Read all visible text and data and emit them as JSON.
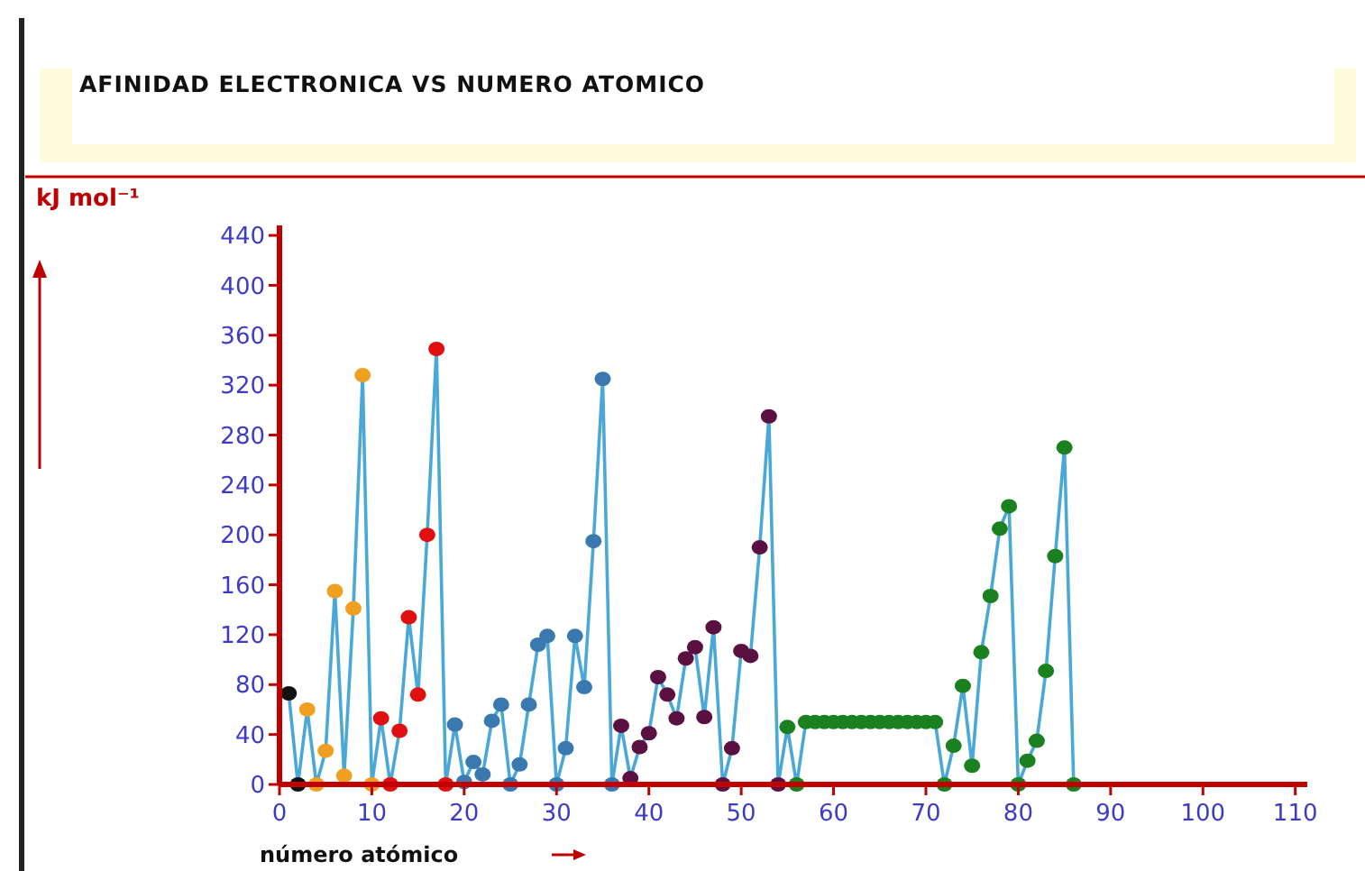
{
  "chart_data": {
    "type": "line",
    "title": "AFINIDAD ELECTRONICA VS NUMERO ATOMICO",
    "xlabel": "número atómico",
    "ylabel": "kJ mol⁻¹",
    "x": [
      1,
      2,
      3,
      4,
      5,
      6,
      7,
      8,
      9,
      10,
      11,
      12,
      13,
      14,
      15,
      16,
      17,
      18,
      19,
      20,
      21,
      22,
      23,
      24,
      25,
      26,
      27,
      28,
      29,
      30,
      31,
      32,
      33,
      34,
      35,
      36,
      37,
      38,
      39,
      40,
      41,
      42,
      43,
      44,
      45,
      46,
      47,
      48,
      49,
      50,
      51,
      52,
      53,
      54,
      55,
      56,
      57,
      58,
      59,
      60,
      61,
      62,
      63,
      64,
      65,
      66,
      67,
      68,
      69,
      70,
      71,
      72,
      73,
      74,
      75,
      76,
      77,
      78,
      79,
      80,
      81,
      82,
      83,
      84,
      85,
      86
    ],
    "series": [
      {
        "color": "#4aa8d8",
        "values": [
          73,
          0,
          60,
          0,
          27,
          155,
          7,
          141,
          328,
          0,
          53,
          0,
          43,
          134,
          72,
          200,
          349,
          0,
          48,
          2,
          18,
          8,
          51,
          64,
          0,
          16,
          64,
          112,
          119,
          0,
          29,
          119,
          78,
          195,
          325,
          0,
          47,
          5,
          30,
          41,
          86,
          72,
          53,
          101,
          110,
          54,
          126,
          0,
          29,
          107,
          103,
          190,
          295,
          0,
          46,
          0,
          50,
          50,
          50,
          50,
          50,
          50,
          50,
          50,
          50,
          50,
          50,
          50,
          50,
          50,
          50,
          0,
          31,
          79,
          15,
          106,
          151,
          205,
          223,
          0,
          19,
          35,
          91,
          183,
          270,
          0
        ],
        "colors": [
          "#111111",
          "#111111",
          "#f0a020",
          "#f0a020",
          "#f0a020",
          "#f0a020",
          "#f0a020",
          "#f0a020",
          "#f0a020",
          "#f0a020",
          "#e01010",
          "#e01010",
          "#e01010",
          "#e01010",
          "#e01010",
          "#e01010",
          "#e01010",
          "#e01010",
          "#3a78b0",
          "#3a78b0",
          "#3a78b0",
          "#3a78b0",
          "#3a78b0",
          "#3a78b0",
          "#3a78b0",
          "#3a78b0",
          "#3a78b0",
          "#3a78b0",
          "#3a78b0",
          "#3a78b0",
          "#3a78b0",
          "#3a78b0",
          "#3a78b0",
          "#3a78b0",
          "#3a78b0",
          "#3a78b0",
          "#5a1040",
          "#5a1040",
          "#5a1040",
          "#5a1040",
          "#5a1040",
          "#5a1040",
          "#5a1040",
          "#5a1040",
          "#5a1040",
          "#5a1040",
          "#5a1040",
          "#5a1040",
          "#5a1040",
          "#5a1040",
          "#5a1040",
          "#5a1040",
          "#5a1040",
          "#5a1040",
          "#1a8020",
          "#1a8020",
          "#1a8020",
          "#1a8020",
          "#1a8020",
          "#1a8020",
          "#1a8020",
          "#1a8020",
          "#1a8020",
          "#1a8020",
          "#1a8020",
          "#1a8020",
          "#1a8020",
          "#1a8020",
          "#1a8020",
          "#1a8020",
          "#1a8020",
          "#1a8020",
          "#1a8020",
          "#1a8020",
          "#1a8020",
          "#1a8020",
          "#1a8020",
          "#1a8020",
          "#1a8020",
          "#1a8020",
          "#1a8020",
          "#1a8020",
          "#1a8020",
          "#1a8020",
          "#1a8020",
          "#1a8020"
        ]
      }
    ],
    "marker": "circle",
    "line_style": "solid",
    "grid": false,
    "xlim": [
      0,
      111.3
    ],
    "xticks": [
      0,
      10,
      20,
      30,
      40,
      50,
      60,
      70,
      80,
      90,
      100,
      110
    ],
    "ylim": [
      0,
      448
    ],
    "yticks": [
      0,
      40,
      80,
      120,
      160,
      200,
      240,
      280,
      320,
      360,
      400,
      440
    ]
  }
}
